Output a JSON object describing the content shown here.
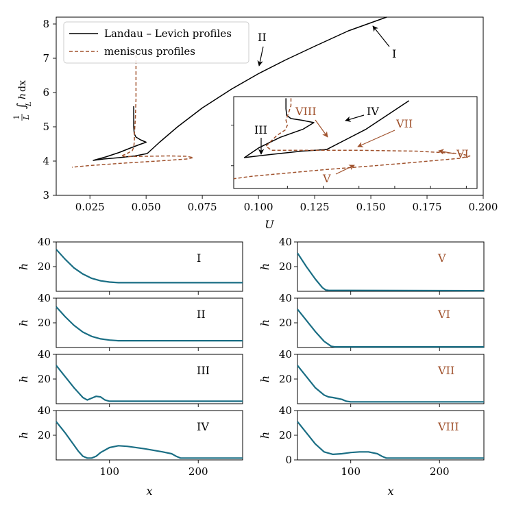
{
  "colors": {
    "black": "#000000",
    "brown": "#a0522d",
    "teal": "#1a6e84"
  },
  "chart_data": [
    {
      "id": "main",
      "type": "line",
      "xlabel": "U",
      "ylabel": "1/L ∫_L h dx",
      "ylabel_parts": {
        "num": "1",
        "den": "L",
        "sub": "L",
        "int": "∫",
        "h": "h",
        "dx": "dx"
      },
      "xlim": [
        0.01,
        0.2
      ],
      "ylim": [
        3,
        8.2
      ],
      "xticks": [
        0.025,
        0.05,
        0.075,
        0.1,
        0.125,
        0.15,
        0.175,
        0.2
      ],
      "xtick_labels": [
        "0.025",
        "0.050",
        "0.075",
        "0.100",
        "0.125",
        "0.150",
        "0.175",
        "0.200"
      ],
      "yticks": [
        3,
        4,
        5,
        6,
        7,
        8
      ],
      "ytick_labels": [
        "3",
        "4",
        "5",
        "6",
        "7",
        "8"
      ],
      "legend": [
        {
          "label": "Landau – Levich profiles",
          "style": "solid",
          "color": "#000000"
        },
        {
          "label": "meniscus profiles",
          "style": "dashed",
          "color": "#a0522d"
        }
      ],
      "legend_position": "top-left",
      "series": [
        {
          "name": "Landau – Levich profiles",
          "style": "solid",
          "color": "#000000",
          "x": [
            0.0445,
            0.0445,
            0.0447,
            0.0455,
            0.0475,
            0.05,
            0.047,
            0.043,
            0.038,
            0.032,
            0.0265,
            0.031,
            0.038,
            0.045,
            0.0505,
            0.056,
            0.064,
            0.075,
            0.088,
            0.1,
            0.112,
            0.125,
            0.14,
            0.157
          ],
          "y": [
            5.6,
            5.0,
            4.8,
            4.7,
            4.62,
            4.55,
            4.48,
            4.38,
            4.25,
            4.12,
            4.02,
            4.06,
            4.1,
            4.15,
            4.22,
            4.55,
            5.0,
            5.55,
            6.1,
            6.55,
            6.95,
            7.35,
            7.8,
            8.2
          ]
        },
        {
          "name": "meniscus profiles",
          "style": "dashed",
          "color": "#a0522d",
          "x": [
            0.0455,
            0.0455,
            0.0452,
            0.0448,
            0.0448,
            0.0445,
            0.0438,
            0.0415,
            0.039,
            0.041,
            0.05,
            0.06,
            0.068,
            0.071,
            0.068,
            0.055,
            0.04,
            0.025,
            0.017
          ],
          "y": [
            7.1,
            5.8,
            5.2,
            4.8,
            4.6,
            4.4,
            4.3,
            4.22,
            4.15,
            4.13,
            4.14,
            4.15,
            4.14,
            4.1,
            4.06,
            4.0,
            3.94,
            3.87,
            3.82
          ]
        }
      ],
      "annotations": [
        {
          "text": "I",
          "color": "#000000"
        },
        {
          "text": "II",
          "color": "#000000"
        }
      ]
    },
    {
      "id": "inset",
      "type": "line",
      "xlim": [
        0.0375,
        0.0715
      ],
      "ylim": [
        3.72,
        4.85
      ],
      "series": [
        {
          "name": "Landau – Levich profiles",
          "style": "solid",
          "color": "#000000",
          "x": [
            0.0448,
            0.0448,
            0.0449,
            0.0455,
            0.047,
            0.0487,
            0.0472,
            0.044,
            0.041,
            0.039,
            0.0428,
            0.047,
            0.0505,
            0.056,
            0.062
          ],
          "y": [
            4.83,
            4.7,
            4.62,
            4.58,
            4.56,
            4.53,
            4.45,
            4.35,
            4.22,
            4.1,
            4.14,
            4.18,
            4.2,
            4.45,
            4.8
          ],
          "inset_series": true
        },
        {
          "name": "meniscus profiles",
          "style": "dashed",
          "color": "#a0522d",
          "x": [
            0.0455,
            0.0455,
            0.0452,
            0.0448,
            0.045,
            0.0447,
            0.0435,
            0.042,
            0.0428,
            0.048,
            0.055,
            0.063,
            0.069,
            0.0705,
            0.069,
            0.06,
            0.05,
            0.04,
            0.0375
          ],
          "y": [
            4.83,
            4.74,
            4.66,
            4.56,
            4.5,
            4.44,
            4.37,
            4.24,
            4.19,
            4.19,
            4.19,
            4.18,
            4.15,
            4.12,
            4.09,
            4.02,
            3.95,
            3.87,
            3.84
          ],
          "inset_series": true
        }
      ],
      "annotations": [
        {
          "text": "III",
          "color": "#000000"
        },
        {
          "text": "IV",
          "color": "#000000"
        },
        {
          "text": "V",
          "color": "#a0522d"
        },
        {
          "text": "VI",
          "color": "#a0522d"
        },
        {
          "text": "VII",
          "color": "#a0522d"
        },
        {
          "text": "VIII",
          "color": "#a0522d"
        }
      ]
    },
    {
      "id": "profiles",
      "type": "line",
      "xlabel": "x",
      "ylabel": "h",
      "xlim": [
        40,
        250
      ],
      "ylim": [
        0,
        40
      ],
      "xticks": [
        100,
        200
      ],
      "xtick_labels": [
        "100",
        "200"
      ],
      "yticks": [
        20,
        40
      ],
      "ytick_labels": [
        "20",
        "40"
      ],
      "bottom_ytick_labels": [
        "0",
        "20",
        "40"
      ],
      "panels": [
        {
          "label": "I",
          "label_color": "#000000",
          "x": [
            40,
            50,
            60,
            70,
            80,
            90,
            100,
            110,
            120,
            250
          ],
          "h": [
            34,
            26,
            19,
            14,
            10.5,
            8.5,
            7.5,
            7,
            7,
            7
          ]
        },
        {
          "label": "II",
          "label_color": "#000000",
          "x": [
            40,
            50,
            60,
            70,
            80,
            90,
            100,
            110,
            120,
            250
          ],
          "h": [
            33,
            25,
            18,
            12.5,
            9,
            7,
            6,
            5.5,
            5.5,
            5.5
          ]
        },
        {
          "label": "III",
          "label_color": "#000000",
          "x": [
            40,
            50,
            60,
            65,
            70,
            75,
            80,
            85,
            90,
            95,
            100,
            105,
            250
          ],
          "h": [
            31,
            22,
            13,
            9,
            5,
            3,
            4.5,
            6,
            5.5,
            3,
            2,
            2,
            2
          ]
        },
        {
          "label": "IV",
          "label_color": "#000000",
          "x": [
            40,
            50,
            60,
            65,
            70,
            75,
            80,
            85,
            90,
            100,
            110,
            120,
            140,
            160,
            170,
            175,
            180,
            250
          ],
          "h": [
            31,
            22,
            12,
            7,
            3,
            1.5,
            1.5,
            3,
            6,
            10,
            11.5,
            11,
            9,
            6.5,
            5,
            3,
            1.5,
            1.5
          ]
        },
        {
          "label": "V",
          "label_color": "#a0522d",
          "x": [
            40,
            50,
            60,
            68,
            72,
            75,
            250
          ],
          "h": [
            31,
            20,
            10,
            3,
            1,
            0.8,
            0.5
          ]
        },
        {
          "label": "VI",
          "label_color": "#a0522d",
          "x": [
            40,
            50,
            60,
            70,
            78,
            82,
            250
          ],
          "h": [
            31,
            22,
            13,
            5,
            1,
            0.5,
            0.5
          ]
        },
        {
          "label": "VII",
          "label_color": "#a0522d",
          "x": [
            40,
            50,
            60,
            70,
            75,
            80,
            90,
            95,
            100,
            250
          ],
          "h": [
            31,
            22,
            13,
            7,
            5.5,
            5,
            3.5,
            2,
            1.5,
            1.5
          ]
        },
        {
          "label": "VIII",
          "label_color": "#a0522d",
          "x": [
            40,
            50,
            60,
            70,
            80,
            90,
            100,
            110,
            120,
            130,
            135,
            140,
            250
          ],
          "h": [
            31,
            22,
            13,
            6.5,
            4.5,
            5,
            6,
            6.5,
            6.5,
            5,
            3,
            1.5,
            1.5
          ]
        }
      ]
    }
  ]
}
